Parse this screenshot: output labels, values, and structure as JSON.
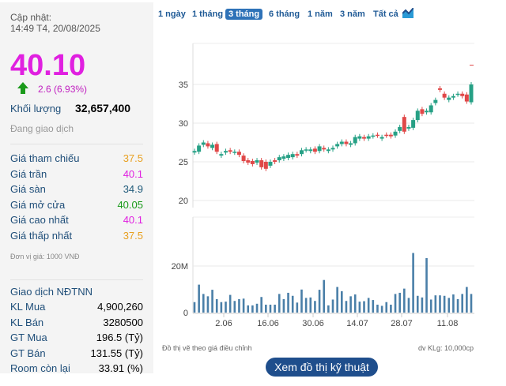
{
  "info": {
    "updated_label": "Cập nhật:",
    "updated_time": "14:49 T4, 20/08/2025",
    "price": "40.10",
    "change": "2.6 (6.93%)",
    "volume_label": "Khối lượng",
    "volume": "32,657,400",
    "status": "Đang giao dịch",
    "rows": [
      {
        "label": "Giá tham chiếu",
        "value": "37.5",
        "color": "#e8a020"
      },
      {
        "label": "Giá trần",
        "value": "40.1",
        "color": "#e020e0"
      },
      {
        "label": "Giá sàn",
        "value": "34.9",
        "color": "#1f5a7a"
      },
      {
        "label": "Giá mở cửa",
        "value": "40.05",
        "color": "#1a9a1a"
      },
      {
        "label": "Giá cao nhất",
        "value": "40.1",
        "color": "#e020e0"
      },
      {
        "label": "Giá thấp nhất",
        "value": "37.5",
        "color": "#e8a020"
      }
    ],
    "unit": "Đơn vị giá: 1000 VNĐ"
  },
  "foreign": {
    "title": "Giao dịch NĐTNN",
    "rows": [
      {
        "label": "KL Mua",
        "value": "4,900,260"
      },
      {
        "label": "KL Bán",
        "value": "3280500"
      },
      {
        "label": "GT Mua",
        "value": "196.5 (Tỷ)"
      },
      {
        "label": "GT Bán",
        "value": "131.55 (Tỷ)"
      },
      {
        "label": "Room còn lại",
        "value": "33.91 (%)"
      }
    ]
  },
  "tabs": [
    {
      "label": "1 ngày"
    },
    {
      "label": "1 tháng"
    },
    {
      "label": "3 tháng",
      "active": true
    },
    {
      "label": "6 tháng"
    },
    {
      "label": "1 năm"
    },
    {
      "label": "3 năm"
    },
    {
      "label": "Tất cả"
    }
  ],
  "chart_data": {
    "type": "candlestick",
    "price_ticks": [
      "20",
      "25",
      "30",
      "35"
    ],
    "ylim": [
      20,
      39
    ],
    "volume_ticks": [
      "0",
      "20M"
    ],
    "volume_ylim": [
      0,
      30
    ],
    "x_ticks": [
      "2.06",
      "16.06",
      "30.06",
      "14.07",
      "28.07",
      "11.08"
    ],
    "up_color": "#26a085",
    "down_color": "#e04848",
    "volume_color": "#4a7fa8",
    "reference_marker": 37.5,
    "close": [
      26.4,
      27.1,
      27.5,
      27.0,
      27.2,
      26.3,
      26.0,
      26.4,
      26.3,
      26.3,
      25.9,
      25.1,
      24.9,
      24.7,
      25.2,
      24.3,
      24.1,
      25.0,
      25.0,
      25.6,
      25.7,
      25.9,
      26.0,
      25.8,
      26.5,
      26.6,
      26.6,
      26.3,
      27.0,
      26.6,
      26.6,
      26.8,
      27.3,
      27.6,
      27.3,
      27.4,
      28.2,
      28.3,
      28.0,
      28.3,
      28.4,
      28.4,
      28.2,
      28.4,
      28.3,
      28.9,
      29.5,
      28.9,
      29.5,
      30.4,
      31.6,
      31.2,
      31.6,
      32.3,
      33.0,
      34.3,
      33.3,
      33.3,
      33.5,
      33.8,
      33.5,
      32.8,
      35.0
    ],
    "open": [
      26.2,
      26.3,
      27.2,
      27.4,
      26.8,
      27.3,
      25.8,
      26.2,
      26.5,
      26.2,
      26.3,
      25.8,
      25.2,
      25.1,
      24.9,
      25.2,
      25.0,
      24.5,
      25.2,
      25.2,
      25.4,
      25.5,
      25.6,
      26.0,
      26.0,
      26.5,
      26.4,
      26.7,
      26.4,
      26.8,
      26.4,
      26.6,
      27.0,
      27.3,
      27.6,
      27.2,
      27.4,
      28.0,
      28.2,
      28.0,
      28.3,
      28.5,
      28.0,
      28.5,
      28.5,
      28.4,
      29.0,
      30.8,
      29.3,
      29.4,
      30.4,
      31.8,
      31.4,
      31.4,
      32.6,
      34.5,
      33.8,
      33.0,
      33.3,
      33.7,
      33.8,
      33.7,
      32.7
    ],
    "volume_m": [
      4.5,
      12,
      8,
      7,
      9.8,
      5.8,
      4.5,
      4.7,
      7.6,
      5,
      5.8,
      6,
      3.1,
      3.1,
      3.8,
      6.7,
      3.4,
      3.4,
      3.4,
      8,
      5.8,
      8.5,
      7.2,
      4.3,
      9.9,
      6.3,
      6.5,
      5,
      9.8,
      14,
      3.1,
      5.6,
      11,
      9.2,
      5,
      7,
      7.8,
      4.7,
      4.9,
      6.3,
      5.4,
      3.4,
      2.9,
      4.5,
      3.4,
      8,
      8.5,
      10.3,
      6.3,
      25.6,
      7.2,
      6.5,
      23.4,
      5.6,
      7.4,
      7.4,
      7.2,
      6.3,
      7.8,
      5.8,
      8,
      11,
      8
    ]
  },
  "footer": {
    "note_left": "Đồ thị vẽ theo giá điều chỉnh",
    "note_right": "dv KLg: 10,000cp",
    "button": "Xem đồ thị kỹ thuật"
  }
}
